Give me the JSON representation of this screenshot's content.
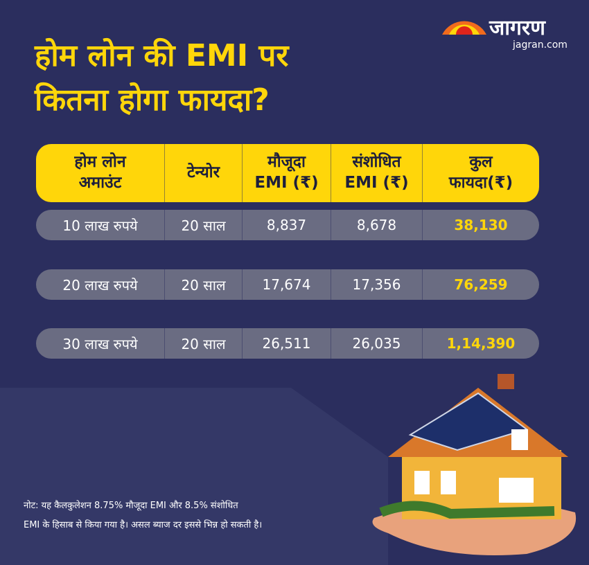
{
  "logo": {
    "name": "जागरण",
    "site": "jagran.com"
  },
  "title": [
    "होम लोन की EMI पर",
    "कितना होगा फायदा?"
  ],
  "table": {
    "headers": [
      [
        "होम लोन",
        "अमाउंट"
      ],
      [
        "टेन्योर"
      ],
      [
        "मौजूदा",
        "EMI (₹)"
      ],
      [
        "संशोधित",
        "EMI (₹)"
      ],
      [
        "कुल",
        "फायदा(₹)"
      ]
    ],
    "rows": [
      [
        "10 लाख रुपये",
        "20 साल",
        "8,837",
        "8,678",
        "38,130"
      ],
      [
        "20 लाख रुपये",
        "20 साल",
        "17,674",
        "17,356",
        "76,259"
      ],
      [
        "30 लाख रुपये",
        "20 साल",
        "26,511",
        "26,035",
        "1,14,390"
      ]
    ]
  },
  "note": [
    "नोट: यह कैलकुलेशन 8.75% मौजूदा EMI और 8.5% संशोधित",
    "EMI के हिसाब से किया गया है। असल ब्याज दर इससे भिन्न हो सकती है।"
  ]
}
